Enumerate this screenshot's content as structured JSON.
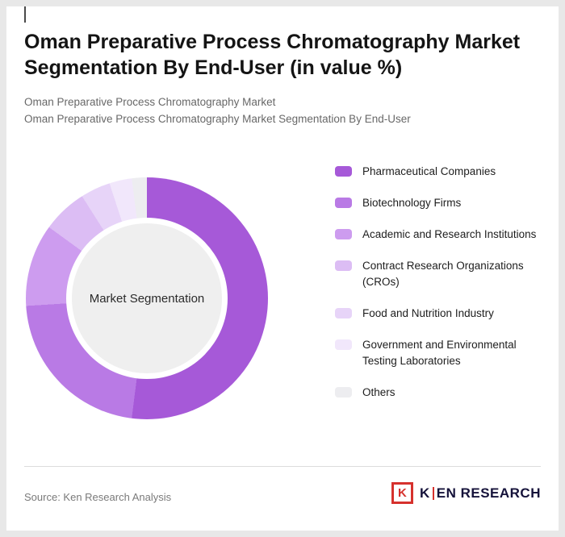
{
  "header": {
    "title": "Oman Preparative Process Chromatography Market Segmentation By End-User (in value %)",
    "subtitle1": "Oman Preparative Process Chromatography Market",
    "subtitle2": "Oman Preparative Process Chromatography Market Segmentation By End-User"
  },
  "chart_data": {
    "type": "pie",
    "subtype": "donut",
    "title": "Oman Preparative Process Chromatography Market Segmentation By End-User (in value %)",
    "center_label": "Market Segmentation",
    "legend_position": "right",
    "unit": "value %",
    "segments": [
      {
        "label": "Pharmaceutical Companies",
        "value": 52,
        "color": "#a659d8"
      },
      {
        "label": "Biotechnology Firms",
        "value": 22,
        "color": "#b97ae5"
      },
      {
        "label": "Academic and Research Institutions",
        "value": 11,
        "color": "#cd9cef"
      },
      {
        "label": "Contract Research Organizations (CROs)",
        "value": 6,
        "color": "#dcbdf4"
      },
      {
        "label": "Food and Nutrition Industry",
        "value": 4,
        "color": "#e7d4f8"
      },
      {
        "label": "Government and Environmental Testing Laboratories",
        "value": 3,
        "color": "#f1e7fb"
      },
      {
        "label": "Others",
        "value": 2,
        "color": "#ededf0"
      }
    ]
  },
  "footer": {
    "source": "Source: Ken Research Analysis",
    "logo": {
      "mark_letter": "K",
      "name_first": "K",
      "name_rest": "EN RESEARCH"
    }
  }
}
